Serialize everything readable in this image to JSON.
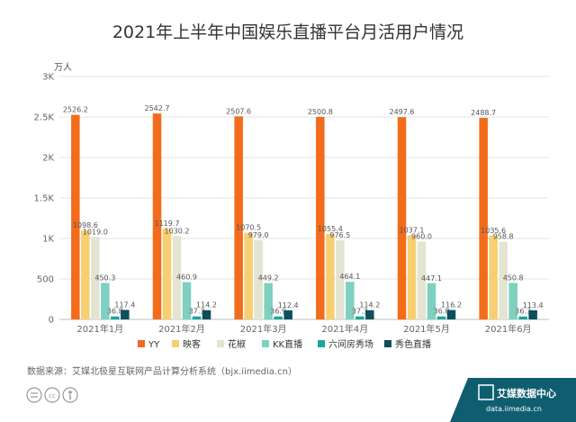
{
  "chart_data": {
    "type": "bar",
    "title": "2021年上半年中国娱乐直播平台月活用户情况",
    "ylabel": "万人",
    "ylim": [
      0,
      3000
    ],
    "yticks": [
      "0",
      "500",
      "1K",
      "1.5K",
      "2K",
      "2.5K",
      "3K"
    ],
    "categories": [
      "2021年1月",
      "2021年2月",
      "2021年3月",
      "2021年4月",
      "2021年5月",
      "2021年6月"
    ],
    "series": [
      {
        "name": "YY",
        "color": "#f26c1c",
        "values": [
          2526.2,
          2542.7,
          2507.6,
          2500.8,
          2497.6,
          2488.7
        ]
      },
      {
        "name": "映客",
        "color": "#f7cf72",
        "values": [
          1098.6,
          1119.7,
          1070.5,
          1055.4,
          1037.1,
          1035.6
        ]
      },
      {
        "name": "花椒",
        "color": "#e3e5d2",
        "values": [
          1019.0,
          1030.2,
          979.0,
          976.5,
          960.0,
          958.8
        ]
      },
      {
        "name": "KK直播",
        "color": "#7ed0c0",
        "values": [
          450.3,
          460.9,
          449.2,
          464.1,
          447.1,
          450.8
        ]
      },
      {
        "name": "六间房秀场",
        "color": "#18a79c",
        "values": [
          36.8,
          37.3,
          36.9,
          37.3,
          36.8,
          36.3
        ]
      },
      {
        "name": "秀色直播",
        "color": "#0d4f5c",
        "values": [
          117.4,
          114.2,
          112.4,
          114.2,
          116.2,
          113.4
        ]
      }
    ],
    "grid": true,
    "legend_position": "bottom"
  },
  "source": "数据来源：艾媒北极星互联网产品计算分析系统（bjx.iimedia.cn）",
  "logo": {
    "name": "艾媒数据中心",
    "url": "data.iimedia.cn"
  }
}
